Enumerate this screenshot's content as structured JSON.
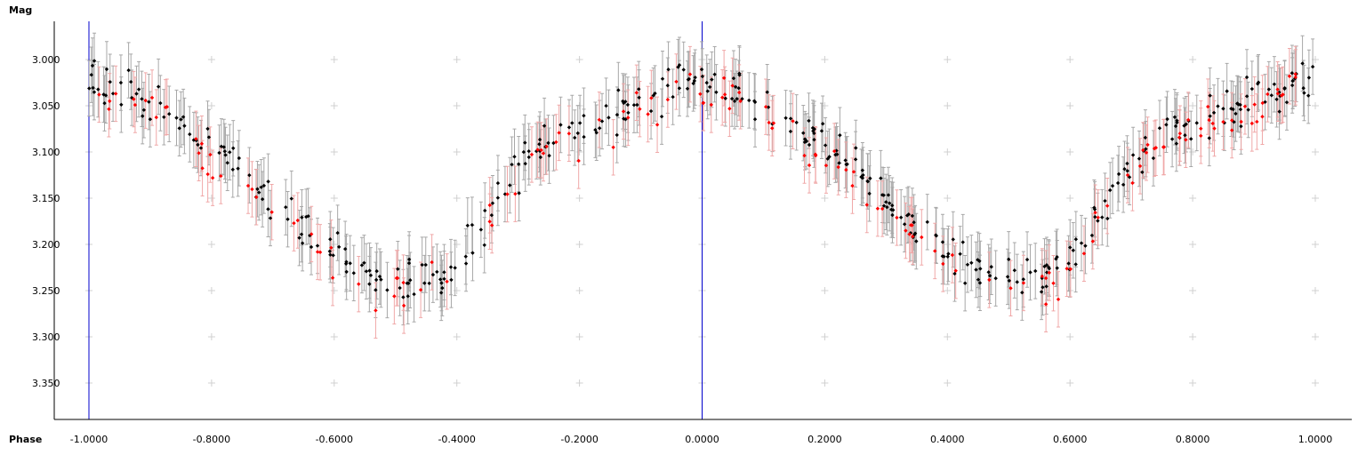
{
  "chart_data": {
    "type": "scatter",
    "title": "",
    "xlabel": "Phase",
    "ylabel": "Mag",
    "xlim": [
      -1.04,
      1.06
    ],
    "ylim": [
      3.388,
      2.96
    ],
    "y_inverted": true,
    "grid": "plus markers",
    "x_ticks": [
      "-1.0000",
      "-0.8000",
      "-0.6000",
      "-0.4000",
      "-0.2000",
      "0.0000",
      "0.2000",
      "0.4000",
      "0.6000",
      "0.8000",
      "1.0000"
    ],
    "y_ticks": [
      "3.000",
      "3.050",
      "3.100",
      "3.150",
      "3.200",
      "3.250",
      "3.300",
      "3.350"
    ],
    "reference_lines_x": [
      -1.0,
      0.0
    ],
    "series": [
      {
        "color": "#000000",
        "errorbar_color": "#a8a8a8",
        "count": 430
      },
      {
        "color": "#ff0000",
        "errorbar_color": "#f0a8a8",
        "count": 160
      }
    ],
    "light_curve": {
      "phase": [
        -0.05,
        0.05,
        0.15,
        0.25,
        0.35,
        0.45,
        0.5,
        0.55,
        0.6,
        0.65,
        0.7,
        0.75,
        0.85,
        0.95
      ],
      "mag": [
        3.02,
        3.03,
        3.07,
        3.12,
        3.18,
        3.23,
        3.245,
        3.24,
        3.215,
        3.17,
        3.115,
        3.085,
        3.06,
        3.03
      ],
      "scatter_sigma": 0.022,
      "error_halfwidth": 0.03
    }
  }
}
